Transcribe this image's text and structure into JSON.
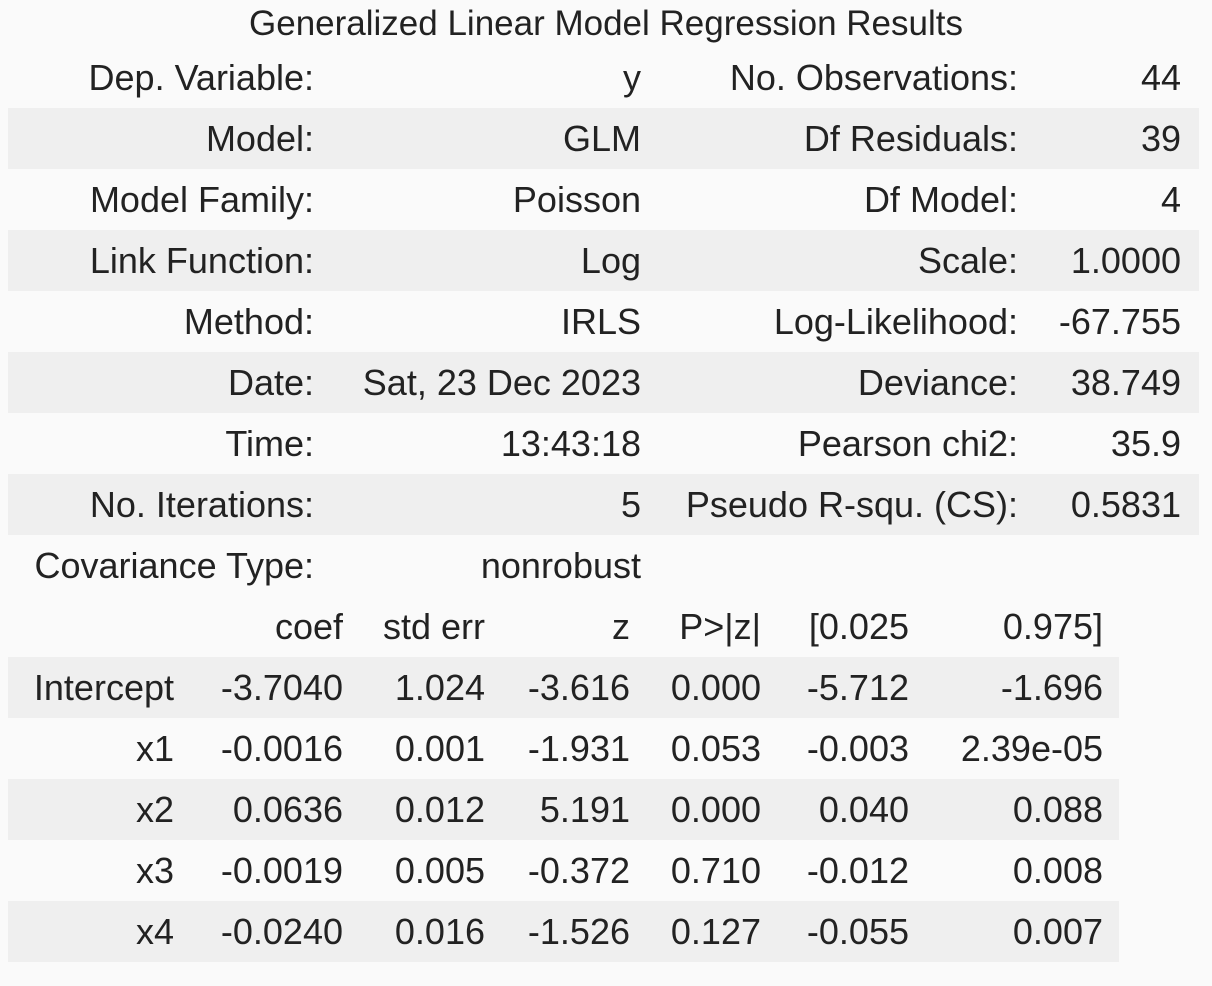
{
  "title": "Generalized Linear Model Regression Results",
  "summary": {
    "rows": [
      {
        "label_left": "Dep. Variable:",
        "value_left": "y",
        "label_right": "No. Observations:",
        "value_right": "44"
      },
      {
        "label_left": "Model:",
        "value_left": "GLM",
        "label_right": "Df Residuals:",
        "value_right": "39"
      },
      {
        "label_left": "Model Family:",
        "value_left": "Poisson",
        "label_right": "Df Model:",
        "value_right": "4"
      },
      {
        "label_left": "Link Function:",
        "value_left": "Log",
        "label_right": "Scale:",
        "value_right": "1.0000"
      },
      {
        "label_left": "Method:",
        "value_left": "IRLS",
        "label_right": "Log-Likelihood:",
        "value_right": "-67.755"
      },
      {
        "label_left": "Date:",
        "value_left": "Sat, 23 Dec 2023",
        "label_right": "Deviance:",
        "value_right": "38.749"
      },
      {
        "label_left": "Time:",
        "value_left": "13:43:18",
        "label_right": "Pearson chi2:",
        "value_right": "35.9"
      },
      {
        "label_left": "No. Iterations:",
        "value_left": "5",
        "label_right": "Pseudo R-squ. (CS):",
        "value_right": "0.5831"
      },
      {
        "label_left": "Covariance Type:",
        "value_left": "nonrobust",
        "label_right": "",
        "value_right": ""
      }
    ]
  },
  "coefficients": {
    "headers": [
      "",
      "coef",
      "std err",
      "z",
      "P>|z|",
      "[0.025",
      "0.975]"
    ],
    "rows": [
      {
        "name": "Intercept",
        "coef": "-3.7040",
        "std_err": "1.024",
        "z": "-3.616",
        "p": "0.000",
        "ci_low": "-5.712",
        "ci_high": "-1.696"
      },
      {
        "name": "x1",
        "coef": "-0.0016",
        "std_err": "0.001",
        "z": "-1.931",
        "p": "0.053",
        "ci_low": "-0.003",
        "ci_high": "2.39e-05"
      },
      {
        "name": "x2",
        "coef": "0.0636",
        "std_err": "0.012",
        "z": "5.191",
        "p": "0.000",
        "ci_low": "0.040",
        "ci_high": "0.088"
      },
      {
        "name": "x3",
        "coef": "-0.0019",
        "std_err": "0.005",
        "z": "-0.372",
        "p": "0.710",
        "ci_low": "-0.012",
        "ci_high": "0.008"
      },
      {
        "name": "x4",
        "coef": "-0.0240",
        "std_err": "0.016",
        "z": "-1.526",
        "p": "0.127",
        "ci_low": "-0.055",
        "ci_high": "0.007"
      }
    ]
  }
}
